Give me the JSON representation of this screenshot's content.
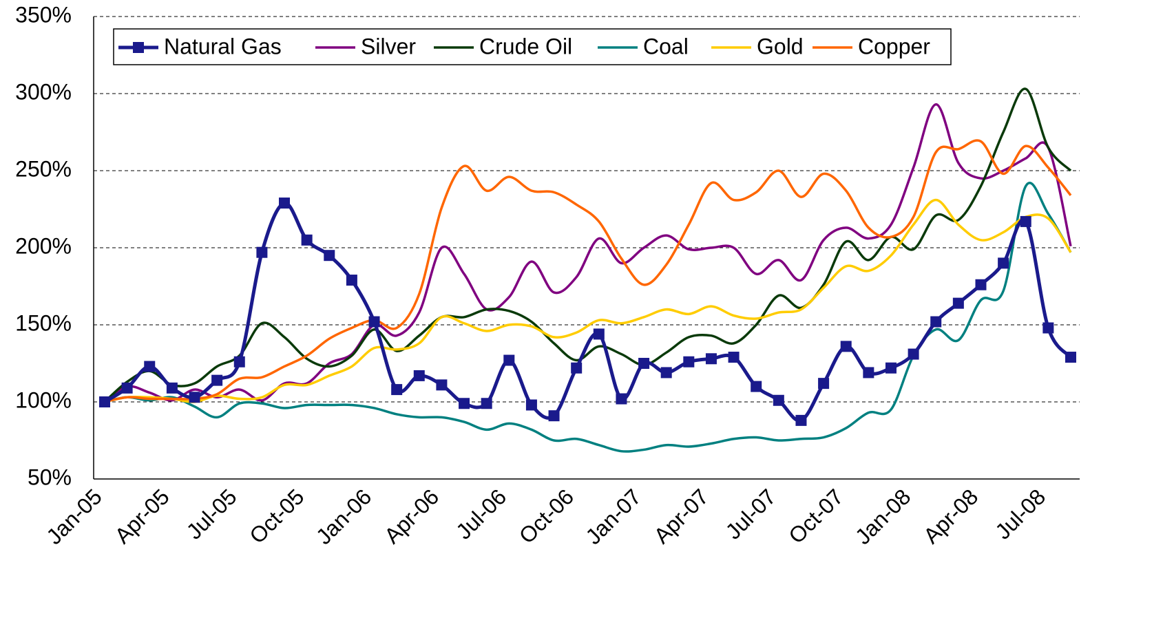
{
  "chart_data": {
    "type": "line",
    "categories": [
      "Jan-05",
      null,
      null,
      "Apr-05",
      null,
      null,
      "Jul-05",
      null,
      null,
      "Oct-05",
      null,
      null,
      "Jan-06",
      null,
      null,
      "Apr-06",
      null,
      null,
      "Jul-06",
      null,
      null,
      "Oct-06",
      null,
      null,
      "Jan-07",
      null,
      null,
      "Apr-07",
      null,
      null,
      "Jul-07",
      null,
      null,
      "Oct-07",
      null,
      null,
      "Jan-08",
      null,
      null,
      "Apr-08",
      null,
      null,
      "Jul-08",
      null
    ],
    "ylim": [
      50,
      350
    ],
    "yticks": [
      {
        "value": 50,
        "label": "50%"
      },
      {
        "value": 100,
        "label": "100%"
      },
      {
        "value": 150,
        "label": "150%"
      },
      {
        "value": 200,
        "label": "200%"
      },
      {
        "value": 250,
        "label": "250%"
      },
      {
        "value": 300,
        "label": "300%"
      },
      {
        "value": 350,
        "label": "350%"
      }
    ],
    "grid": true,
    "series": [
      {
        "name": "Natural Gas",
        "color": "#1a1a8c",
        "marker": "square",
        "values": [
          100,
          109,
          123,
          109,
          103,
          114,
          126,
          197,
          229,
          205,
          195,
          179,
          152,
          108,
          117,
          111,
          99,
          99,
          127,
          98,
          91,
          122,
          144,
          102,
          125,
          119,
          126,
          128,
          129,
          110,
          101,
          88,
          112,
          136,
          119,
          122,
          131,
          152,
          164,
          176,
          190,
          217,
          148,
          129
        ]
      },
      {
        "name": "Silver",
        "color": "#800080",
        "values": [
          100,
          110,
          106,
          101,
          108,
          103,
          108,
          101,
          112,
          112,
          125,
          131,
          150,
          143,
          158,
          200,
          183,
          160,
          168,
          191,
          171,
          181,
          206,
          190,
          200,
          208,
          199,
          200,
          200,
          183,
          192,
          179,
          205,
          213,
          206,
          215,
          252,
          293,
          255,
          245,
          250,
          258,
          265,
          201
        ]
      },
      {
        "name": "Crude Oil",
        "color": "#0a3a0a",
        "values": [
          100,
          113,
          120,
          111,
          112,
          123,
          130,
          151,
          142,
          128,
          123,
          130,
          147,
          133,
          143,
          155,
          155,
          160,
          159,
          152,
          138,
          127,
          136,
          131,
          124,
          132,
          142,
          143,
          138,
          150,
          169,
          161,
          176,
          204,
          192,
          207,
          199,
          221,
          218,
          240,
          275,
          303,
          265,
          250
        ]
      },
      {
        "name": "Coal",
        "color": "#008080",
        "values": [
          100,
          103,
          101,
          103,
          97,
          90,
          99,
          99,
          96,
          98,
          98,
          98,
          96,
          92,
          90,
          90,
          87,
          82,
          86,
          82,
          75,
          76,
          72,
          68,
          69,
          72,
          71,
          73,
          76,
          77,
          75,
          76,
          77,
          83,
          93,
          95,
          130,
          147,
          140,
          166,
          172,
          240,
          222,
          197
        ]
      },
      {
        "name": "Gold",
        "color": "#ffcc00",
        "values": [
          100,
          103,
          103,
          102,
          100,
          104,
          102,
          103,
          111,
          111,
          117,
          123,
          135,
          134,
          138,
          155,
          151,
          146,
          150,
          149,
          142,
          145,
          153,
          151,
          155,
          160,
          157,
          162,
          156,
          154,
          158,
          160,
          174,
          188,
          185,
          195,
          215,
          231,
          215,
          205,
          210,
          220,
          219,
          197
        ]
      },
      {
        "name": "Copper",
        "color": "#ff6600",
        "values": [
          100,
          103,
          102,
          102,
          102,
          105,
          115,
          116,
          123,
          130,
          141,
          148,
          153,
          148,
          170,
          226,
          253,
          237,
          246,
          237,
          236,
          228,
          217,
          193,
          176,
          189,
          215,
          242,
          231,
          236,
          250,
          233,
          248,
          237,
          213,
          207,
          220,
          262,
          264,
          269,
          248,
          266,
          252,
          234
        ]
      }
    ]
  }
}
